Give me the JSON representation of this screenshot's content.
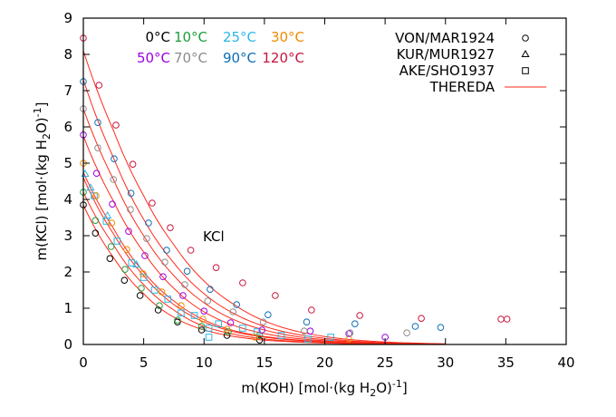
{
  "chart_data": {
    "type": "scatter",
    "xlabel": {
      "main": "m(KOH) [mol·(kg H",
      "sub": "2",
      "mid": "O)",
      "sup": "-1",
      "end": "]"
    },
    "ylabel": {
      "main": "m(KCl) [mol·(kg H",
      "sub": "2",
      "mid": "O)",
      "sup": "-1",
      "end": "]"
    },
    "xlim": [
      0,
      40
    ],
    "ylim": [
      0,
      9
    ],
    "xticks": [
      0,
      5,
      10,
      15,
      20,
      25,
      30,
      35,
      40
    ],
    "yticks": [
      0,
      1,
      2,
      3,
      4,
      5,
      6,
      7,
      8,
      9
    ],
    "grid": false,
    "annotation": {
      "text": "KCl",
      "x": 10,
      "y": 2.95
    },
    "curve_color": "#ff2a1a",
    "temperatures": [
      {
        "label": "0°C",
        "color": "#000000"
      },
      {
        "label": "10°C",
        "color": "#1e9e3c"
      },
      {
        "label": "25°C",
        "color": "#2ab8e6"
      },
      {
        "label": "30°C",
        "color": "#f08a00"
      },
      {
        "label": "50°C",
        "color": "#9b00e0"
      },
      {
        "label": "70°C",
        "color": "#8c8c8c"
      },
      {
        "label": "90°C",
        "color": "#0b6db5"
      },
      {
        "label": "120°C",
        "color": "#c8143c"
      }
    ],
    "legend": [
      {
        "label": "VON/MAR1924",
        "marker": "circle"
      },
      {
        "label": "KUR/MUR1927",
        "marker": "triangle"
      },
      {
        "label": "AKE/SHO1937",
        "marker": "square"
      },
      {
        "label": "THEREDA",
        "marker": "line"
      }
    ],
    "series": [
      {
        "temp": 0,
        "source": 0,
        "points": [
          [
            0,
            3.85
          ],
          [
            1,
            3.07
          ],
          [
            2.2,
            2.37
          ],
          [
            3.4,
            1.77
          ],
          [
            4.7,
            1.35
          ],
          [
            6.2,
            0.95
          ],
          [
            7.8,
            0.62
          ],
          [
            9.8,
            0.4
          ],
          [
            11.9,
            0.25
          ],
          [
            14.6,
            0.12
          ]
        ]
      },
      {
        "temp": 1,
        "source": 0,
        "points": [
          [
            0,
            4.2
          ],
          [
            1,
            3.42
          ],
          [
            2.3,
            2.7
          ],
          [
            3.45,
            2.07
          ],
          [
            4.8,
            1.55
          ],
          [
            6.3,
            1.07
          ],
          [
            7.8,
            0.67
          ],
          [
            9.8,
            0.5
          ],
          [
            12,
            0.35
          ],
          [
            14.6,
            0.25
          ]
        ]
      },
      {
        "temp": 2,
        "source": 1,
        "points": [
          [
            0.15,
            4.7
          ],
          [
            0.6,
            4.32
          ],
          [
            2,
            3.55
          ],
          [
            4.4,
            2.2
          ]
        ]
      },
      {
        "temp": 2,
        "source": 2,
        "points": [
          [
            0.9,
            4.1
          ],
          [
            1.9,
            3.4
          ],
          [
            2.8,
            2.85
          ],
          [
            4,
            2.25
          ],
          [
            5,
            1.85
          ],
          [
            5.9,
            1.5
          ],
          [
            7,
            1.25
          ],
          [
            8.1,
            0.87
          ],
          [
            9.2,
            0.8
          ],
          [
            10.4,
            0.45
          ],
          [
            11.2,
            0.57
          ],
          [
            13.2,
            0.45
          ],
          [
            14.4,
            0.35
          ],
          [
            16.4,
            0.25
          ],
          [
            18.6,
            0.15
          ],
          [
            20.5,
            0.2
          ],
          [
            10.4,
            0.2
          ]
        ]
      },
      {
        "temp": 3,
        "source": 0,
        "points": [
          [
            0,
            5.0
          ],
          [
            1.05,
            4.1
          ],
          [
            2.35,
            3.35
          ],
          [
            3.6,
            2.62
          ],
          [
            4.95,
            1.95
          ],
          [
            6.5,
            1.45
          ],
          [
            8.1,
            1.07
          ],
          [
            9.9,
            0.7
          ],
          [
            11.9,
            0.42
          ],
          [
            14.2,
            0.2
          ],
          [
            22,
            0.15
          ]
        ]
      },
      {
        "temp": 4,
        "source": 0,
        "points": [
          [
            0,
            5.78
          ],
          [
            1.1,
            4.72
          ],
          [
            2.4,
            3.87
          ],
          [
            3.75,
            3.12
          ],
          [
            5.1,
            2.45
          ],
          [
            6.6,
            1.87
          ],
          [
            8.25,
            1.35
          ],
          [
            10,
            0.92
          ],
          [
            12.2,
            0.6
          ],
          [
            14.8,
            0.4
          ],
          [
            18.8,
            0.37
          ],
          [
            22,
            0.3
          ],
          [
            25,
            0.2
          ]
        ]
      },
      {
        "temp": 5,
        "source": 0,
        "points": [
          [
            0,
            6.5
          ],
          [
            1.2,
            5.42
          ],
          [
            2.5,
            4.55
          ],
          [
            3.9,
            3.72
          ],
          [
            5.25,
            2.92
          ],
          [
            6.75,
            2.27
          ],
          [
            8.4,
            1.65
          ],
          [
            10.3,
            1.2
          ],
          [
            12.4,
            0.9
          ],
          [
            14.9,
            0.62
          ],
          [
            18.3,
            0.37
          ],
          [
            22.1,
            0.32
          ],
          [
            26.8,
            0.32
          ]
        ]
      },
      {
        "temp": 6,
        "source": 0,
        "points": [
          [
            0,
            7.25
          ],
          [
            1.2,
            6.12
          ],
          [
            2.55,
            5.12
          ],
          [
            3.95,
            4.17
          ],
          [
            5.4,
            3.35
          ],
          [
            6.9,
            2.6
          ],
          [
            8.6,
            2.02
          ],
          [
            10.5,
            1.52
          ],
          [
            12.7,
            1.1
          ],
          [
            15.3,
            0.82
          ],
          [
            18.5,
            0.62
          ],
          [
            22.5,
            0.57
          ],
          [
            27.5,
            0.5
          ],
          [
            29.6,
            0.47
          ]
        ]
      },
      {
        "temp": 7,
        "source": 0,
        "points": [
          [
            0,
            8.45
          ],
          [
            1.3,
            7.15
          ],
          [
            2.7,
            6.05
          ],
          [
            4.1,
            4.97
          ],
          [
            5.7,
            3.9
          ],
          [
            7.2,
            3.22
          ],
          [
            8.9,
            2.6
          ],
          [
            11,
            2.12
          ],
          [
            13.2,
            1.7
          ],
          [
            15.9,
            1.35
          ],
          [
            18.9,
            0.95
          ],
          [
            22.9,
            0.8
          ],
          [
            28,
            0.72
          ],
          [
            34.6,
            0.7
          ],
          [
            35.1,
            0.7
          ]
        ]
      }
    ],
    "curves_x": [
      0,
      2.5,
      5,
      7.5,
      10,
      12.5,
      15,
      20,
      25,
      30
    ],
    "curves": [
      [
        3.85,
        2.4,
        1.4,
        0.75,
        0.4,
        0.22,
        0.12,
        0.04,
        0.01,
        0.003
      ],
      [
        4.2,
        2.75,
        1.65,
        0.95,
        0.5,
        0.28,
        0.15,
        0.05,
        0.015,
        0.004
      ],
      [
        4.6,
        3.05,
        1.9,
        1.1,
        0.62,
        0.35,
        0.2,
        0.07,
        0.02,
        0.005
      ],
      [
        4.75,
        3.2,
        2.0,
        1.2,
        0.68,
        0.38,
        0.22,
        0.08,
        0.02,
        0.006
      ],
      [
        5.75,
        3.95,
        2.55,
        1.55,
        0.9,
        0.52,
        0.3,
        0.1,
        0.03,
        0.008
      ],
      [
        6.5,
        4.55,
        3.0,
        1.9,
        1.15,
        0.68,
        0.4,
        0.13,
        0.04,
        0.01
      ],
      [
        7.3,
        5.15,
        3.45,
        2.25,
        1.4,
        0.85,
        0.5,
        0.17,
        0.05,
        0.012
      ],
      [
        8.1,
        5.9,
        4.1,
        2.75,
        1.75,
        1.1,
        0.65,
        0.22,
        0.07,
        0.02
      ]
    ]
  }
}
